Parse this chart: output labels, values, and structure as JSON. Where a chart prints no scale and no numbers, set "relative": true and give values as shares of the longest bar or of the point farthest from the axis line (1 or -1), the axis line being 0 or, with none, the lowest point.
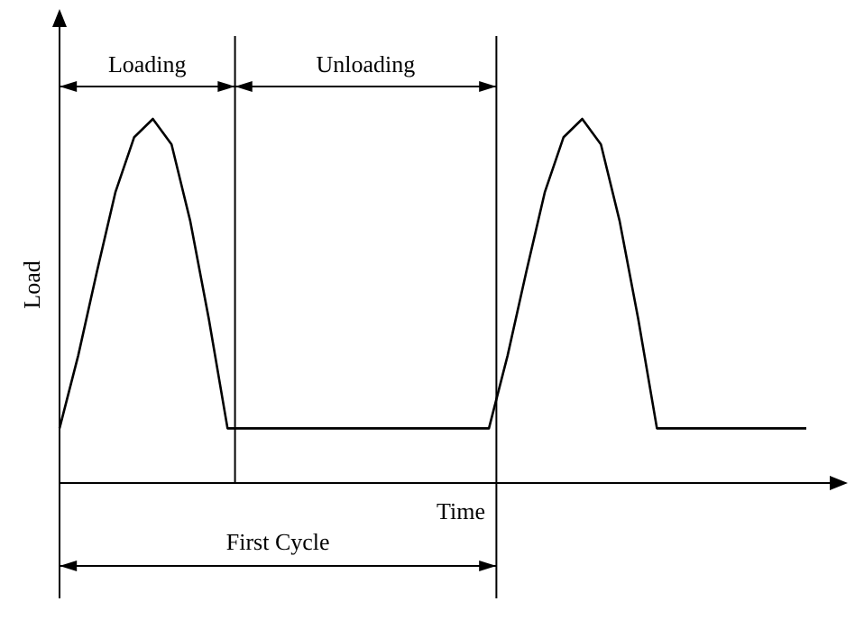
{
  "chart_data": {
    "type": "line",
    "relative": true,
    "xlabel": "Time",
    "ylabel": "Load",
    "marker": "none",
    "line_style": "solid",
    "categories": [
      null,
      null,
      null,
      null,
      null,
      null,
      null,
      null,
      null,
      null,
      null,
      null,
      null,
      null,
      null,
      null,
      null,
      null,
      null,
      null,
      null,
      null,
      null,
      null,
      null,
      null,
      null,
      null,
      null,
      null,
      null,
      null,
      null,
      null,
      null,
      null,
      null,
      null,
      null,
      null,
      null
    ],
    "series": [
      {
        "color": "#000000",
        "values": [
          0.15,
          0.35,
          0.58,
          0.8,
          0.95,
          1,
          0.93,
          0.72,
          0.45,
          0.15,
          0.15,
          0.15,
          0.15,
          0.15,
          0.15,
          0.15,
          0.15,
          0.15,
          0.15,
          0.15,
          0.15,
          0.15,
          0.15,
          0.15,
          0.35,
          0.58,
          0.8,
          0.95,
          1,
          0.93,
          0.72,
          0.45,
          0.15,
          0.15,
          0.15,
          0.15,
          0.15,
          0.15,
          0.15,
          0.15,
          0.15
        ]
      }
    ],
    "annotations": [
      "Loading",
      "Unloading",
      "First Cycle"
    ]
  }
}
